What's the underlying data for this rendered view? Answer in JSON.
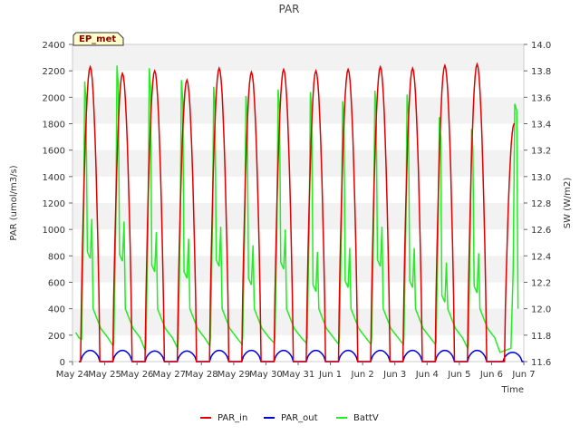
{
  "chart_data": {
    "type": "line",
    "title": "PAR",
    "badge": "EP_met",
    "xlabel": "Time",
    "ylabel": "PAR (umol/m3/s)",
    "y2label": "SW (W/m2)",
    "x_ticks": [
      "May 24",
      "May 25",
      "May 26",
      "May 27",
      "May 28",
      "May 29",
      "May 30",
      "May 31",
      "Jun 1",
      "Jun 2",
      "Jun 3",
      "Jun 4",
      "Jun 5",
      "Jun 6",
      "Jun 7"
    ],
    "xlim": [
      "May 24",
      "Jun 7"
    ],
    "ylim": [
      0,
      2400
    ],
    "y_ticks": [
      0,
      200,
      400,
      600,
      800,
      1000,
      1200,
      1400,
      1600,
      1800,
      2000,
      2200,
      2400
    ],
    "y2lim": [
      11.6,
      14.0
    ],
    "y2_ticks": [
      11.6,
      11.8,
      12.0,
      12.2,
      12.4,
      12.6,
      12.8,
      13.0,
      13.2,
      13.4,
      13.6,
      13.8,
      14.0
    ],
    "grid": "horizontal bands",
    "legend_position": "bottom-center",
    "series": [
      {
        "name": "PAR_in",
        "color": "#e00000",
        "axis": "left",
        "daily_peaks": [
          {
            "day": "May 25",
            "peak": 2230
          },
          {
            "day": "May 26",
            "peak": 2180
          },
          {
            "day": "May 27",
            "peak": 2200
          },
          {
            "day": "May 28",
            "peak": 2130
          },
          {
            "day": "May 29",
            "peak": 2220
          },
          {
            "day": "May 30",
            "peak": 2190
          },
          {
            "day": "May 31",
            "peak": 2210
          },
          {
            "day": "Jun 1",
            "peak": 2200
          },
          {
            "day": "Jun 2",
            "peak": 2210
          },
          {
            "day": "Jun 3",
            "peak": 2230
          },
          {
            "day": "Jun 4",
            "peak": 2220
          },
          {
            "day": "Jun 5",
            "peak": 2240
          },
          {
            "day": "Jun 6",
            "peak": 2250
          },
          {
            "day": "Jun 7",
            "peak": 1800
          }
        ]
      },
      {
        "name": "PAR_out",
        "color": "#0000dd",
        "axis": "left",
        "daily_peaks": [
          {
            "day": "May 25",
            "peak": 85
          },
          {
            "day": "May 26",
            "peak": 85
          },
          {
            "day": "May 27",
            "peak": 80
          },
          {
            "day": "May 28",
            "peak": 80
          },
          {
            "day": "May 29",
            "peak": 85
          },
          {
            "day": "May 30",
            "peak": 85
          },
          {
            "day": "May 31",
            "peak": 85
          },
          {
            "day": "Jun 1",
            "peak": 85
          },
          {
            "day": "Jun 2",
            "peak": 85
          },
          {
            "day": "Jun 3",
            "peak": 85
          },
          {
            "day": "Jun 4",
            "peak": 85
          },
          {
            "day": "Jun 5",
            "peak": 85
          },
          {
            "day": "Jun 6",
            "peak": 85
          },
          {
            "day": "Jun 7",
            "peak": 70
          }
        ]
      },
      {
        "name": "BattV",
        "color": "#22ee22",
        "axis": "right",
        "daily": [
          {
            "day": "May 25",
            "peak": 13.72,
            "plateau": 12.38,
            "min": 11.72
          },
          {
            "day": "May 26",
            "peak": 13.84,
            "plateau": 12.36,
            "min": 11.68
          },
          {
            "day": "May 27",
            "peak": 13.82,
            "plateau": 12.28,
            "min": 11.7
          },
          {
            "day": "May 28",
            "peak": 13.73,
            "plateau": 12.23,
            "min": 11.72
          },
          {
            "day": "May 29",
            "peak": 13.68,
            "plateau": 12.32,
            "min": 11.73
          },
          {
            "day": "May 30",
            "peak": 13.61,
            "plateau": 12.18,
            "min": 11.74
          },
          {
            "day": "May 31",
            "peak": 13.66,
            "plateau": 12.3,
            "min": 11.74
          },
          {
            "day": "Jun 1",
            "peak": 13.64,
            "plateau": 12.13,
            "min": 11.73
          },
          {
            "day": "Jun 2",
            "peak": 13.57,
            "plateau": 12.16,
            "min": 11.73
          },
          {
            "day": "Jun 3",
            "peak": 13.65,
            "plateau": 12.32,
            "min": 11.73
          },
          {
            "day": "Jun 4",
            "peak": 13.62,
            "plateau": 12.16,
            "min": 11.73
          },
          {
            "day": "Jun 5",
            "peak": 13.45,
            "plateau": 12.05,
            "min": 11.7
          },
          {
            "day": "Jun 6",
            "peak": 13.36,
            "plateau": 12.12,
            "min": 11.67
          },
          {
            "day": "Jun 7",
            "peak": 13.55,
            "plateau": 13.55,
            "min": 13.55
          }
        ]
      }
    ]
  }
}
